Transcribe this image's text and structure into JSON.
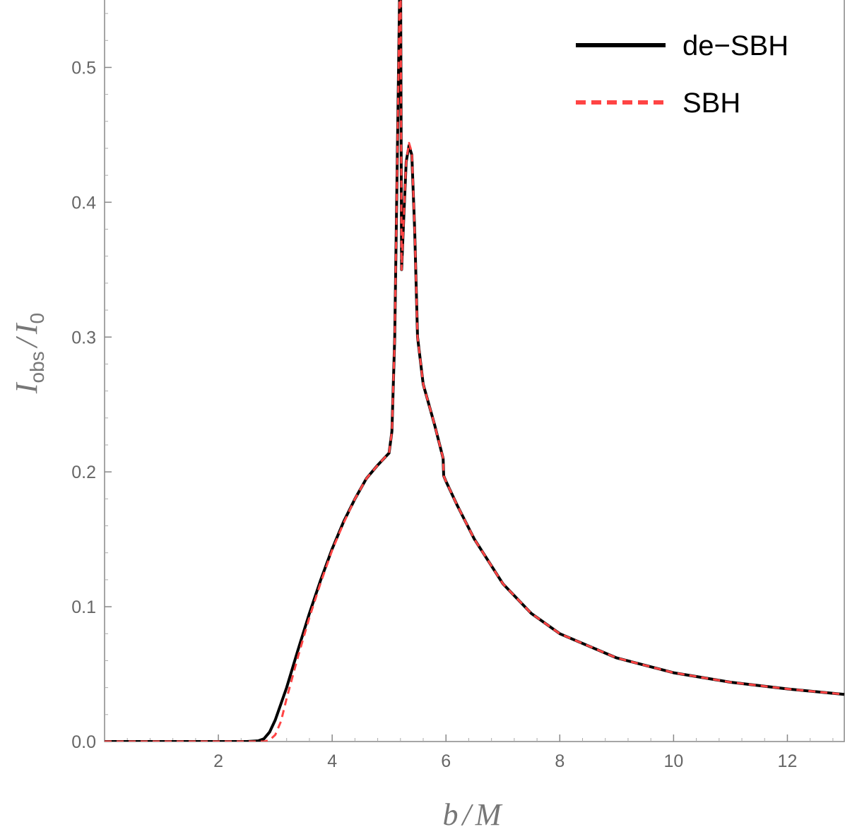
{
  "chart_data": {
    "type": "line",
    "title": "",
    "xlabel": {
      "main": "b",
      "sep": "/",
      "denom": "M"
    },
    "ylabel": {
      "main": "I",
      "sub": "obs",
      "sep": "/",
      "denom": "I",
      "denom_sub": "0"
    },
    "xlim": [
      0,
      13
    ],
    "ylim": [
      0,
      0.55
    ],
    "xticks": [
      2,
      4,
      6,
      8,
      10,
      12
    ],
    "yticks": [
      0.0,
      0.1,
      0.2,
      0.3,
      0.4,
      0.5
    ],
    "ytick_labels": [
      "0.0",
      "0.1",
      "0.2",
      "0.3",
      "0.4",
      "0.5"
    ],
    "grid": false,
    "legend_position": "top-right",
    "series": [
      {
        "name": "de−SBH",
        "color": "#000000",
        "dash": "solid",
        "x": [
          0,
          1,
          2,
          2.5,
          2.7,
          2.8,
          2.9,
          3.0,
          3.2,
          3.4,
          3.6,
          3.8,
          4.0,
          4.2,
          4.4,
          4.6,
          4.8,
          5.0,
          5.05,
          5.1,
          5.15,
          5.2,
          5.22,
          5.25,
          5.3,
          5.35,
          5.4,
          5.45,
          5.5,
          5.6,
          5.8,
          5.95,
          5.96,
          6.0,
          6.2,
          6.5,
          7.0,
          7.5,
          8.0,
          9.0,
          10.0,
          11.0,
          12.0,
          13.0
        ],
        "y": [
          0,
          0,
          0,
          0,
          0.0005,
          0.002,
          0.007,
          0.016,
          0.04,
          0.068,
          0.095,
          0.12,
          0.143,
          0.163,
          0.18,
          0.195,
          0.205,
          0.214,
          0.23,
          0.3,
          0.45,
          0.6,
          0.35,
          0.38,
          0.43,
          0.442,
          0.435,
          0.38,
          0.3,
          0.265,
          0.235,
          0.21,
          0.197,
          0.193,
          0.175,
          0.15,
          0.117,
          0.095,
          0.08,
          0.062,
          0.051,
          0.044,
          0.039,
          0.035
        ]
      },
      {
        "name": "SBH",
        "color": "#ff4444",
        "dash": "dashed",
        "x": [
          0,
          1,
          2,
          2.5,
          2.8,
          2.9,
          3.0,
          3.1,
          3.2,
          3.4,
          3.6,
          3.8,
          4.0,
          4.2,
          4.4,
          4.6,
          4.8,
          5.0,
          5.05,
          5.1,
          5.15,
          5.2,
          5.22,
          5.25,
          5.3,
          5.35,
          5.4,
          5.45,
          5.5,
          5.6,
          5.8,
          5.95,
          5.96,
          6.0,
          6.2,
          6.5,
          7.0,
          7.5,
          8.0,
          9.0,
          10.0,
          11.0,
          12.0,
          13.0
        ],
        "y": [
          0,
          0,
          0,
          0,
          0,
          0.001,
          0.005,
          0.015,
          0.032,
          0.063,
          0.092,
          0.118,
          0.142,
          0.162,
          0.18,
          0.195,
          0.205,
          0.214,
          0.23,
          0.3,
          0.45,
          0.6,
          0.35,
          0.38,
          0.43,
          0.444,
          0.437,
          0.38,
          0.3,
          0.265,
          0.235,
          0.21,
          0.197,
          0.193,
          0.175,
          0.15,
          0.117,
          0.095,
          0.08,
          0.062,
          0.051,
          0.044,
          0.039,
          0.035
        ]
      }
    ]
  }
}
